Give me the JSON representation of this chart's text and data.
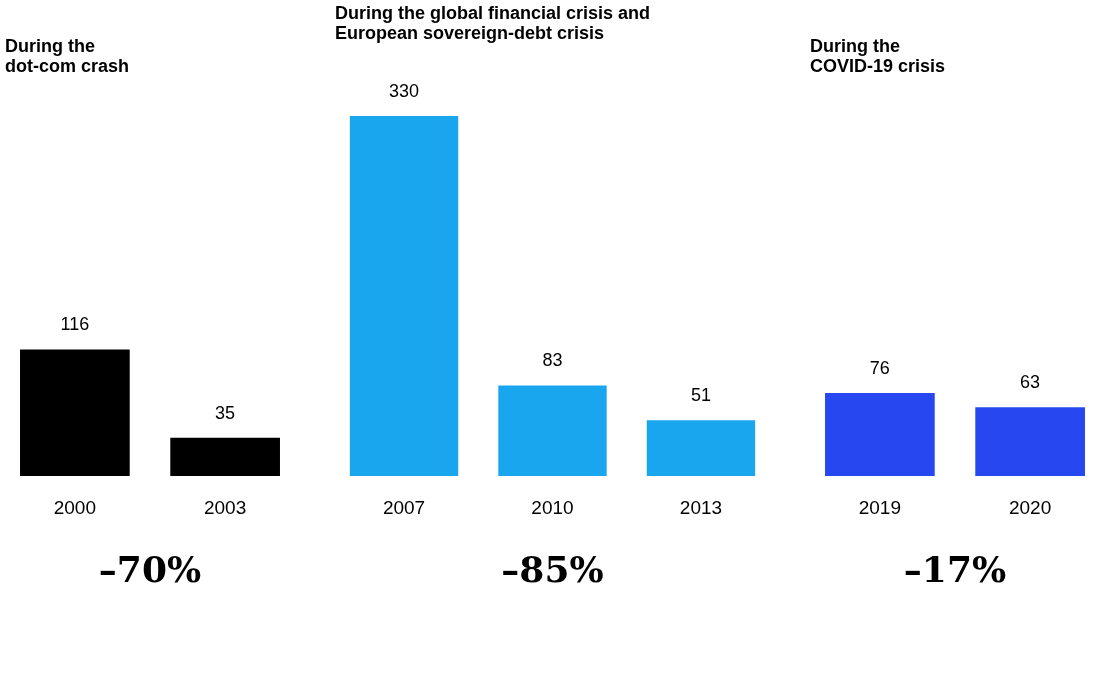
{
  "chart_data": [
    {
      "type": "bar",
      "title": "During the\ndot-com crash",
      "categories": [
        "2000",
        "2003"
      ],
      "values": [
        116,
        35
      ],
      "color": "#000000",
      "data_labels": true,
      "annotations": [
        "–70%"
      ]
    },
    {
      "type": "bar",
      "title": "During the global financial crisis and\nEuropean sovereign-debt crisis",
      "categories": [
        "2007",
        "2010",
        "2013"
      ],
      "values": [
        330,
        83,
        51
      ],
      "color": "#1aa6ee",
      "data_labels": true,
      "annotations": [
        "–85%"
      ]
    },
    {
      "type": "bar",
      "title": "During the\nCOVID-19 crisis",
      "categories": [
        "2019",
        "2020"
      ],
      "values": [
        76,
        63
      ],
      "color": "#2748f0",
      "data_labels": true,
      "annotations": [
        "–17%"
      ]
    }
  ]
}
